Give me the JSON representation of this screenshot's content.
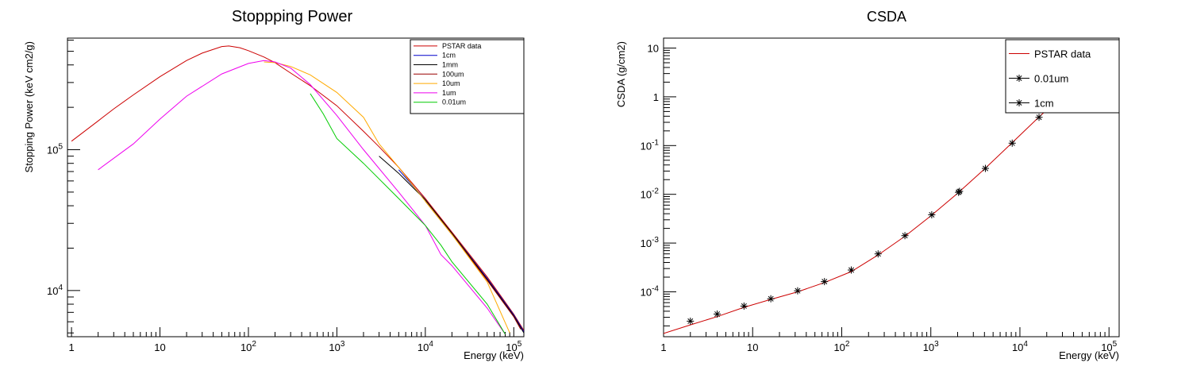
{
  "chart_data": [
    {
      "type": "line",
      "title": "Stoppping Power",
      "xlabel": "Energy (keV)",
      "ylabel": "Stopping Power (keV cm2/g)",
      "xscale": "log",
      "yscale": "log",
      "xlim": [
        0.9,
        130000
      ],
      "ylim": [
        4700,
        620000
      ],
      "x_ticks": [
        1,
        10,
        100,
        1000,
        10000,
        100000
      ],
      "x_tick_labels": [
        "1",
        "10",
        "10^2",
        "10^3",
        "10^4",
        "10^5"
      ],
      "y_ticks": [
        10000,
        100000
      ],
      "y_tick_labels": [
        "10^4",
        "10^5"
      ],
      "legend_position": "top-right",
      "series": [
        {
          "name": "PSTAR data",
          "color": "#cc0000",
          "x": [
            1,
            2,
            3,
            5,
            10,
            20,
            30,
            50,
            60,
            80,
            100,
            150,
            200,
            300,
            500,
            1000,
            2000,
            3000,
            5000,
            10000,
            20000,
            50000,
            100000,
            130000
          ],
          "y": [
            115000,
            160000,
            195000,
            245000,
            330000,
            430000,
            485000,
            540000,
            545000,
            530000,
            505000,
            455000,
            415000,
            350000,
            285000,
            205000,
            135000,
            105000,
            75000,
            45000,
            26000,
            12500,
            6800,
            5200
          ]
        },
        {
          "name": "1cm",
          "color": "#0000cc",
          "x": [
            5000,
            10000,
            20000,
            50000,
            100000,
            130000
          ],
          "y": [
            72000,
            44000,
            25500,
            12200,
            6700,
            5100
          ]
        },
        {
          "name": "1mm",
          "color": "#000000",
          "x": [
            3000,
            5000,
            10000,
            20000,
            50000,
            100000,
            130000
          ],
          "y": [
            90000,
            68000,
            44000,
            25500,
            12000,
            6600,
            5000
          ]
        },
        {
          "name": "100um",
          "color": "#990000",
          "x": [
            10000,
            20000,
            50000,
            100000,
            120000
          ],
          "y": [
            43000,
            25000,
            11800,
            6500,
            5300
          ]
        },
        {
          "name": "10um",
          "color": "#ffaa00",
          "x": [
            150,
            200,
            300,
            500,
            1000,
            2000,
            3000,
            5000,
            10000,
            20000,
            50000,
            90000
          ],
          "y": [
            420000,
            415000,
            390000,
            340000,
            255000,
            170000,
            110000,
            75000,
            43000,
            25000,
            11500,
            5000
          ]
        },
        {
          "name": "1um",
          "color": "#ee00ee",
          "x": [
            2,
            5,
            10,
            20,
            50,
            100,
            150,
            200,
            300,
            500,
            1000,
            2000,
            5000,
            10000,
            15000,
            20000,
            50000,
            80000
          ],
          "y": [
            72000,
            110000,
            165000,
            240000,
            345000,
            410000,
            430000,
            420000,
            380000,
            290000,
            175000,
            100000,
            50000,
            29000,
            18000,
            15000,
            7500,
            4900
          ]
        },
        {
          "name": "0.01um",
          "color": "#00cc00",
          "x": [
            500,
            700,
            1000,
            2000,
            5000,
            10000,
            15000,
            20000,
            50000,
            80000
          ],
          "y": [
            250000,
            180000,
            120000,
            80000,
            45000,
            29000,
            21000,
            16000,
            8000,
            4900
          ]
        }
      ]
    },
    {
      "type": "line",
      "title": "CSDA",
      "xlabel": "Energy (keV)",
      "ylabel": "CSDA (g/cm2)",
      "xscale": "log",
      "yscale": "log",
      "xlim": [
        1,
        130000
      ],
      "ylim": [
        1.2e-05,
        16
      ],
      "x_ticks": [
        1,
        10,
        100,
        1000,
        10000,
        100000
      ],
      "x_tick_labels": [
        "1",
        "10",
        "10^2",
        "10^3",
        "10^4",
        "10^5"
      ],
      "y_ticks": [
        0.0001,
        0.001,
        0.01,
        0.1,
        1,
        10
      ],
      "y_tick_labels": [
        "10^-4",
        "10^-3",
        "10^-2",
        "10^-1",
        "1",
        "10"
      ],
      "legend_position": "top-right",
      "series": [
        {
          "name": "PSTAR data",
          "color": "#cc0000",
          "style": "line",
          "x": [
            1,
            2,
            4,
            8,
            16,
            32,
            64,
            128,
            256,
            512,
            1000,
            2000,
            4000,
            8000,
            16000,
            25000
          ],
          "y": [
            1.4e-05,
            2.1e-05,
            3.1e-05,
            4.8e-05,
            7e-05,
            0.0001,
            0.000155,
            0.00026,
            0.00057,
            0.00138,
            0.0036,
            0.0105,
            0.033,
            0.11,
            0.37,
            0.78
          ]
        },
        {
          "name": "0.01um",
          "color": "#000000",
          "style": "star",
          "x": [
            2,
            4,
            8,
            16,
            32,
            64,
            128,
            256,
            512,
            1024,
            2048,
            4096,
            8192,
            16384
          ],
          "y": [
            2.5e-05,
            3.5e-05,
            5.1e-05,
            7.2e-05,
            0.000105,
            0.000162,
            0.00028,
            0.0006,
            0.00142,
            0.0038,
            0.011,
            0.034,
            0.112,
            0.38
          ]
        },
        {
          "name": "1cm",
          "color": "#000000",
          "style": "star",
          "x": [
            2100
          ],
          "y": [
            0.0115
          ]
        }
      ]
    }
  ]
}
